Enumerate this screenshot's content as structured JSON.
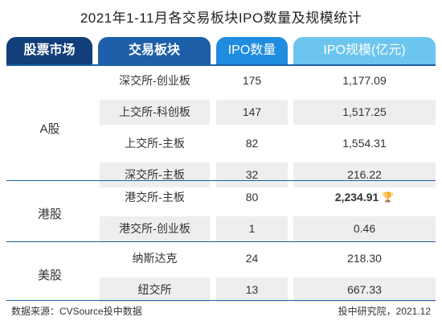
{
  "chart_data": {
    "type": "table",
    "title": "2021年1-11月各交易板块IPO数量及规模统计",
    "columns": [
      "股票市场",
      "交易板块",
      "IPO数量",
      "IPO规模(亿元)"
    ],
    "groups": [
      {
        "market": "A股",
        "rows": [
          {
            "board": "深交所-创业板",
            "count": "175",
            "size": "1,177.09",
            "highlight": false
          },
          {
            "board": "上交所-科创板",
            "count": "147",
            "size": "1,517.25",
            "highlight": false
          },
          {
            "board": "上交所-主板",
            "count": "82",
            "size": "1,554.31",
            "highlight": false
          },
          {
            "board": "深交所-主板",
            "count": "32",
            "size": "216.22",
            "highlight": false
          }
        ]
      },
      {
        "market": "港股",
        "rows": [
          {
            "board": "港交所-主板",
            "count": "80",
            "size": "2,234.91",
            "highlight": true
          },
          {
            "board": "港交所-创业板",
            "count": "1",
            "size": "0.46",
            "highlight": false
          }
        ]
      },
      {
        "market": "美股",
        "rows": [
          {
            "board": "纳斯达克",
            "count": "24",
            "size": "218.30",
            "highlight": false
          },
          {
            "board": "纽交所",
            "count": "13",
            "size": "667.33",
            "highlight": false
          }
        ]
      }
    ]
  },
  "icons": {
    "max_marker": "trophy-icon"
  },
  "colors": {
    "header_dark": "#123f7a",
    "header_mid": "#1d5fa8",
    "header_bright": "#1f8ce0",
    "header_light": "#6cc5ee",
    "trophy": "#f2b600",
    "row_shade": "#eeeeee"
  },
  "footer": {
    "source": "数据来源：CVSource投中数据",
    "credit": "投中研究院，2021.12"
  }
}
